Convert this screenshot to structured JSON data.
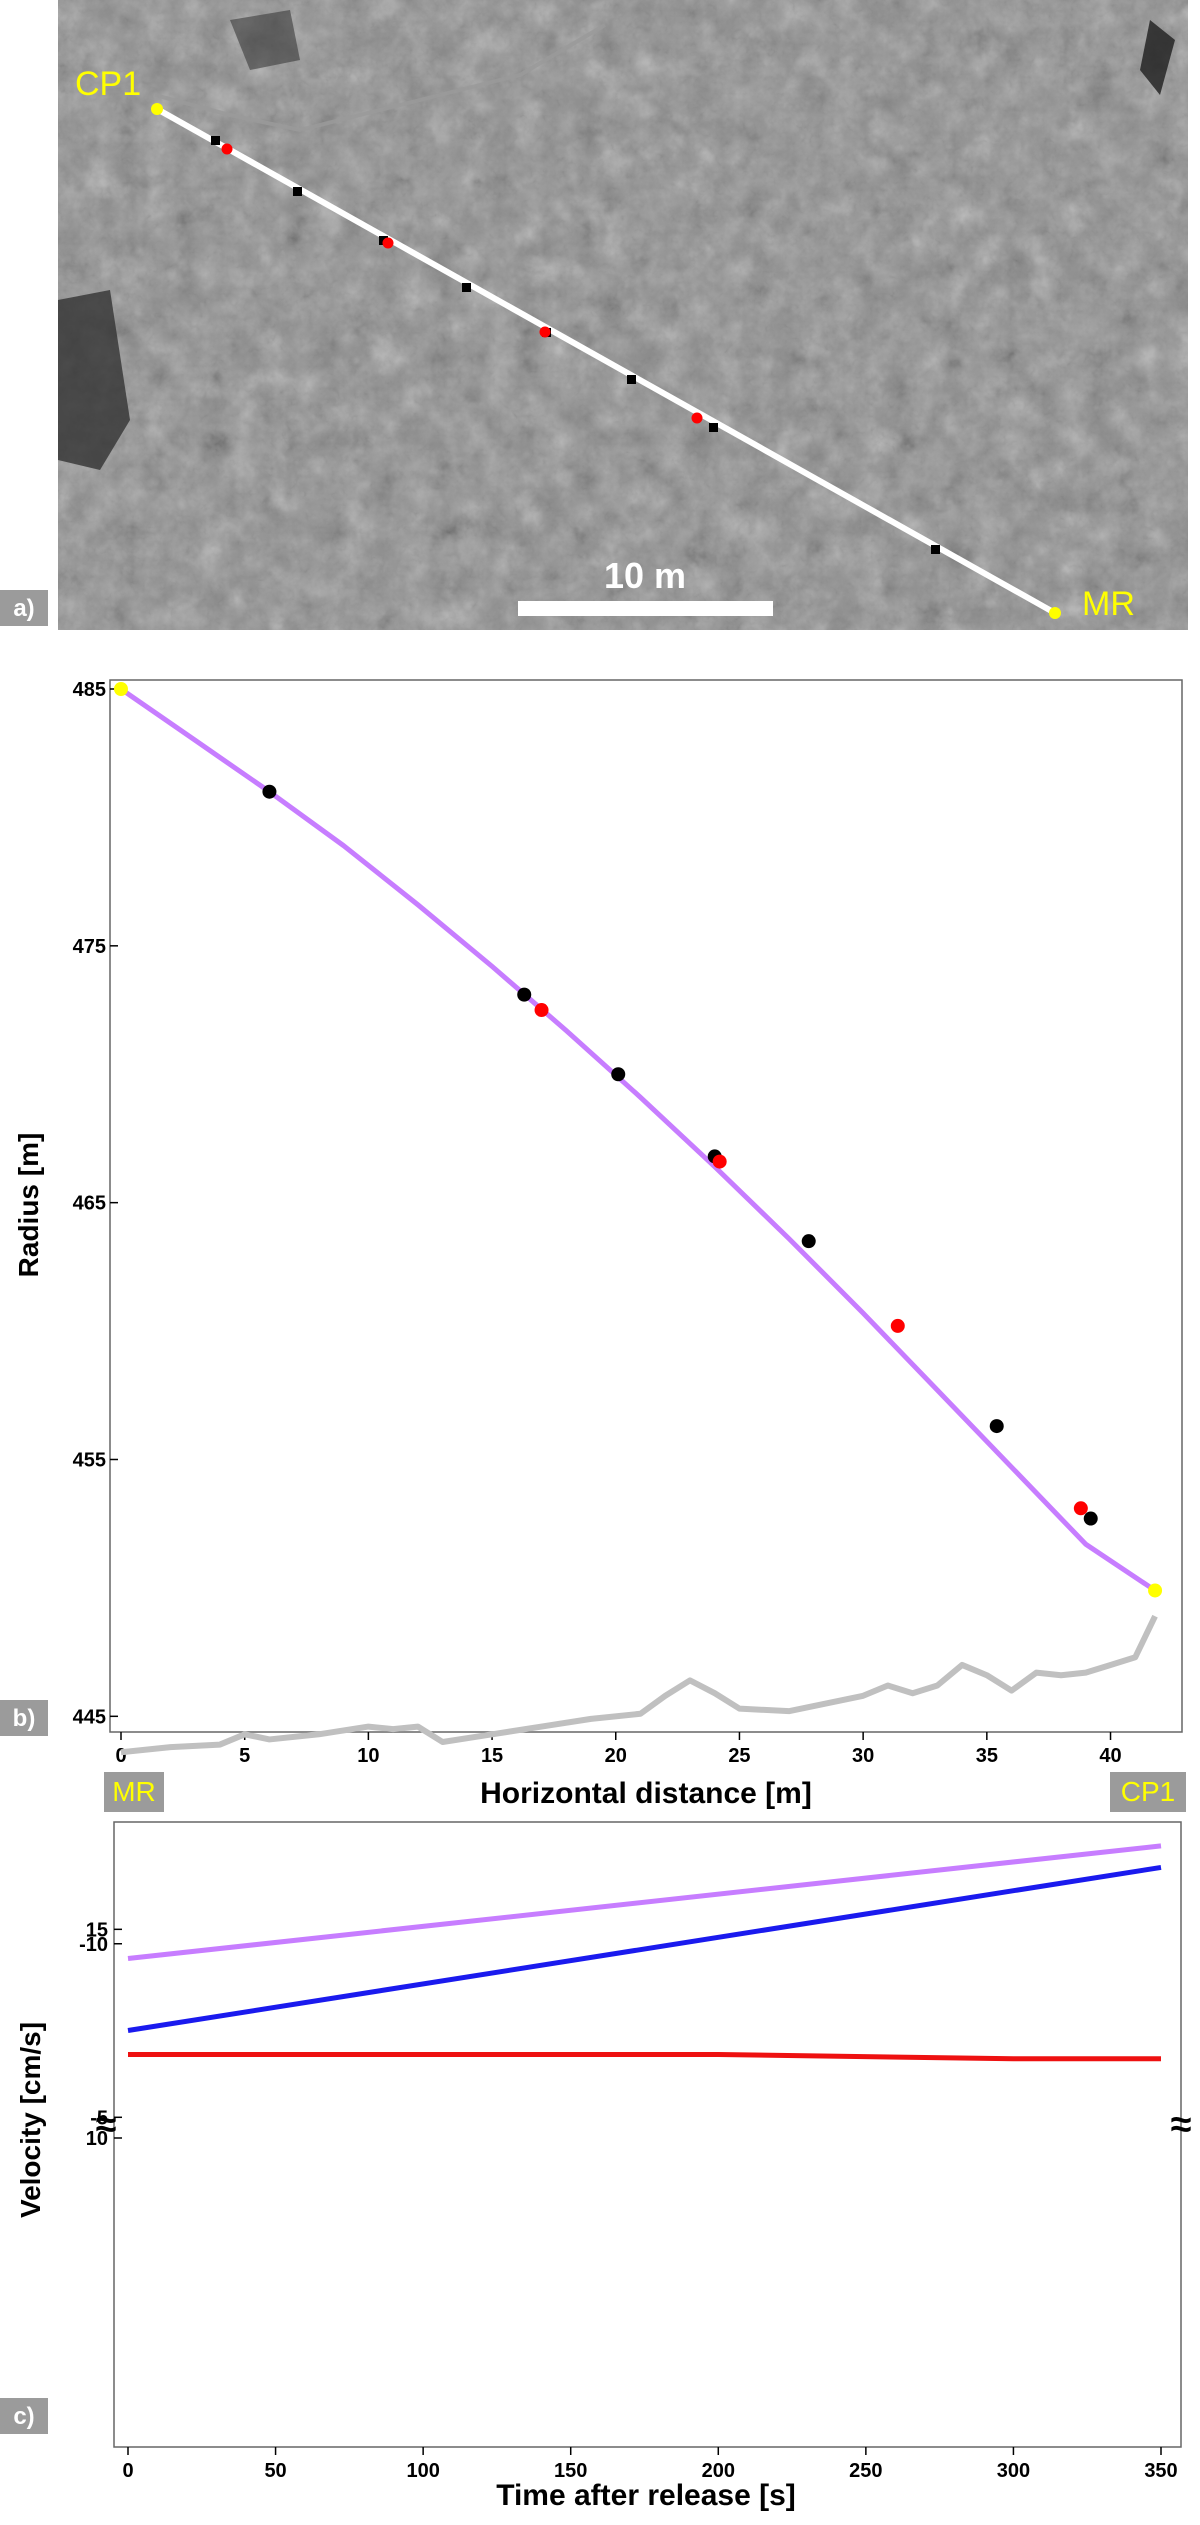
{
  "panel_labels": {
    "a": "a)",
    "b": "b)",
    "c": "c)"
  },
  "map": {
    "scale_label": "10 m",
    "start_label": "CP1",
    "end_label": "MR"
  },
  "colors": {
    "trajectory": "#c77dff",
    "black_point": "#000000",
    "red_point": "#ff0000",
    "endpoint": "#ffff00",
    "surface": "#c0c0c0",
    "vel_red": "#ee1111",
    "vel_blue": "#1a1aee",
    "label_box": "#9b9b9b",
    "label_text": "#ffff00"
  },
  "chart_data": [
    {
      "type": "line",
      "panel": "b",
      "xlabel": "Horizontal distance [m]",
      "ylabel": "Radius [m]",
      "xlim": [
        0,
        42
      ],
      "ylim": [
        444,
        485
      ],
      "xticks": [
        0,
        5,
        10,
        15,
        20,
        25,
        30,
        35,
        40
      ],
      "yticks": [
        445,
        455,
        465,
        475,
        485
      ],
      "x_end_labels": {
        "left": "MR",
        "right": "CP1"
      },
      "series": [
        {
          "role": "trajectory",
          "x": [
            0,
            3,
            6,
            9,
            12,
            15,
            18,
            21,
            24,
            27,
            30,
            33,
            36,
            39,
            41.8
          ],
          "y": [
            485,
            483.0,
            481.0,
            478.9,
            476.6,
            474.2,
            471.7,
            469.1,
            466.4,
            463.6,
            460.7,
            457.7,
            454.7,
            451.7,
            449.9
          ]
        },
        {
          "role": "black-points",
          "x": [
            6.0,
            16.3,
            20.1,
            24.0,
            27.8,
            35.4,
            39.2
          ],
          "y": [
            481.0,
            473.1,
            470.0,
            466.8,
            463.5,
            456.3,
            452.7
          ]
        },
        {
          "role": "red-points",
          "x": [
            17.0,
            24.2,
            31.4,
            38.8
          ],
          "y": [
            472.5,
            466.6,
            460.2,
            453.1
          ]
        },
        {
          "role": "endpoints",
          "x": [
            0,
            41.8
          ],
          "y": [
            485,
            449.9
          ]
        },
        {
          "role": "surface",
          "x": [
            0,
            2,
            4,
            5,
            6,
            8,
            10,
            11,
            12,
            13,
            15,
            17,
            19,
            21,
            22,
            23,
            24,
            25,
            27,
            29,
            30,
            31,
            32,
            33,
            34,
            35,
            36,
            37,
            38,
            39,
            40,
            41,
            41.8
          ],
          "y": [
            443.6,
            443.8,
            443.9,
            444.3,
            444.1,
            444.3,
            444.6,
            444.5,
            444.6,
            444.0,
            444.3,
            444.6,
            444.9,
            445.1,
            445.8,
            446.4,
            445.9,
            445.3,
            445.2,
            445.6,
            445.8,
            446.2,
            445.9,
            446.2,
            447.0,
            446.6,
            446.0,
            446.7,
            446.6,
            446.7,
            447.0,
            447.3,
            448.9
          ]
        }
      ]
    },
    {
      "type": "line",
      "panel": "c",
      "xlabel": "Time after release [s]",
      "ylabel": "Velocity [cm/s]",
      "xlim": [
        0,
        350
      ],
      "xticks": [
        0,
        50,
        100,
        150,
        200,
        250,
        300,
        350
      ],
      "axis_break": "≈",
      "upper_segment": {
        "ylim": [
          10,
          17.5
        ],
        "yticks": [
          10,
          15
        ]
      },
      "lower_segment": {
        "ylim": [
          -12.5,
          -4
        ],
        "yticks": [
          -5,
          -10
        ]
      },
      "series": [
        {
          "role": "purple",
          "segment": "upper",
          "x": [
            0,
            350
          ],
          "y": [
            14.3,
            17.0
          ]
        },
        {
          "role": "red",
          "segment": "upper",
          "x": [
            0,
            100,
            200,
            300,
            350
          ],
          "y": [
            12.0,
            12.0,
            12.0,
            11.9,
            11.9
          ]
        },
        {
          "role": "blue",
          "segment": "lower",
          "x": [
            0,
            350
          ],
          "y": [
            -7.5,
            -12.2
          ]
        }
      ]
    }
  ]
}
